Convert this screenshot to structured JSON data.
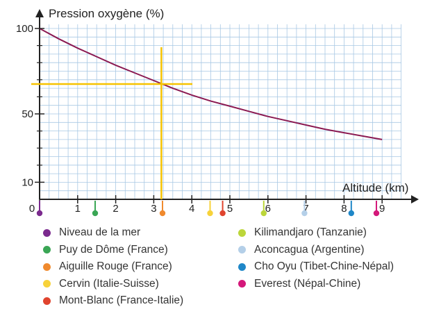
{
  "chart_data": {
    "type": "line",
    "ylabel": "Pression oxygène (%)",
    "xlabel": "Altitude (km)",
    "x_ticks": [
      "0",
      "1",
      "2",
      "3",
      "4",
      "5",
      "6",
      "7",
      "8",
      "9"
    ],
    "y_ticks": [
      "10",
      "50",
      "100"
    ],
    "xlim": [
      0,
      9.5
    ],
    "ylim": [
      0,
      100
    ],
    "grid": true,
    "series": [
      {
        "color": "#8b1a52",
        "x": [
          0,
          0.5,
          1,
          1.5,
          2,
          2.5,
          3,
          3.5,
          4,
          4.5,
          5,
          5.5,
          6,
          6.5,
          7,
          7.5,
          8,
          8.5,
          9
        ],
        "y": [
          100,
          94,
          88.5,
          83.5,
          78.5,
          74,
          69.5,
          65,
          61,
          57.5,
          54.5,
          51.5,
          48.5,
          46,
          43.5,
          41,
          39,
          37,
          35
        ]
      }
    ],
    "annotation": {
      "x": 3.2,
      "y": 67.5,
      "color": "#f7c300"
    },
    "markers": [
      {
        "name": "Niveau de la mer",
        "x": 0,
        "color": "#7b2a8e"
      },
      {
        "name": "Puy de Dôme (France)",
        "x": 1.46,
        "color": "#3aa655"
      },
      {
        "name": "Aiguille Rouge (France)",
        "x": 3.23,
        "color": "#f08a2e"
      },
      {
        "name": "Cervin (Italie-Suisse)",
        "x": 4.48,
        "color": "#f7d23a"
      },
      {
        "name": "Mont-Blanc (France-Italie)",
        "x": 4.81,
        "color": "#e0442e"
      },
      {
        "name": "Kilimandjaro (Tanzanie)",
        "x": 5.89,
        "color": "#bcd63a"
      },
      {
        "name": "Aconcagua (Argentine)",
        "x": 6.96,
        "color": "#b4cfe8"
      },
      {
        "name": "Cho Oyu (Tibet-Chine-Népal)",
        "x": 8.19,
        "color": "#1f87c8"
      },
      {
        "name": "Everest (Népal-Chine)",
        "x": 8.85,
        "color": "#d4187a"
      }
    ]
  },
  "colors": {
    "grid": "#a8c8e4",
    "axis": "#222222"
  }
}
